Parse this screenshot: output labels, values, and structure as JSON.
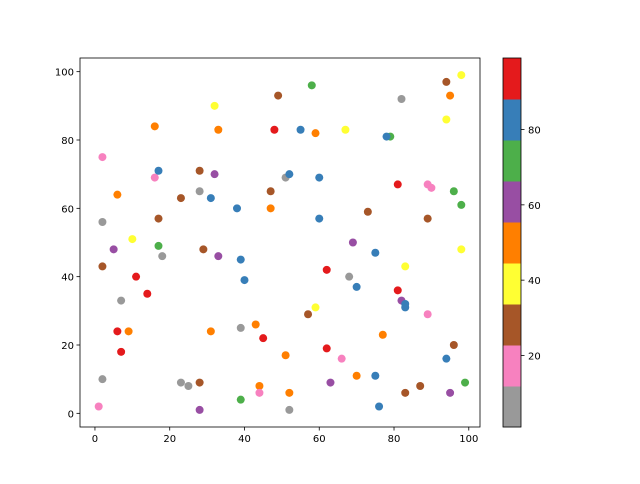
{
  "chart_data": {
    "type": "scatter",
    "title": "",
    "xlabel": "",
    "ylabel": "",
    "xlim": [
      -4,
      103
    ],
    "ylim": [
      -4,
      104
    ],
    "xticks": [
      0,
      20,
      40,
      60,
      80,
      100
    ],
    "yticks": [
      0,
      20,
      40,
      60,
      80,
      100
    ],
    "grid": false,
    "colormap": "Set1_r",
    "colorbar": {
      "range": [
        1,
        99
      ],
      "ticks": [
        20,
        40,
        60,
        80
      ]
    },
    "colormap_colors": [
      "#999999",
      "#f781bf",
      "#a65628",
      "#ffff33",
      "#ff7f00",
      "#984ea3",
      "#4daf4a",
      "#377eb8",
      "#e41a1c"
    ],
    "points": [
      [
        1,
        2,
        15
      ],
      [
        2,
        10,
        5
      ],
      [
        2,
        43,
        27
      ],
      [
        2,
        56,
        5
      ],
      [
        2,
        75,
        15
      ],
      [
        5,
        48,
        60
      ],
      [
        6,
        24,
        93
      ],
      [
        6,
        64,
        49
      ],
      [
        7,
        18,
        93
      ],
      [
        7,
        33,
        5
      ],
      [
        9,
        24,
        49
      ],
      [
        10,
        51,
        38
      ],
      [
        11,
        40,
        93
      ],
      [
        14,
        35,
        93
      ],
      [
        16,
        84,
        49
      ],
      [
        16,
        69,
        15
      ],
      [
        17,
        71,
        82
      ],
      [
        17,
        57,
        27
      ],
      [
        17,
        49,
        71
      ],
      [
        18,
        46,
        5
      ],
      [
        23,
        9,
        5
      ],
      [
        23,
        63,
        27
      ],
      [
        25,
        8,
        5
      ],
      [
        28,
        1,
        60
      ],
      [
        28,
        9,
        27
      ],
      [
        28,
        65,
        5
      ],
      [
        28,
        71,
        27
      ],
      [
        29,
        48,
        27
      ],
      [
        31,
        24,
        49
      ],
      [
        31,
        63,
        82
      ],
      [
        32,
        90,
        38
      ],
      [
        32,
        70,
        60
      ],
      [
        33,
        83,
        49
      ],
      [
        33,
        46,
        60
      ],
      [
        38,
        60,
        82
      ],
      [
        39,
        45,
        82
      ],
      [
        39,
        25,
        5
      ],
      [
        39,
        4,
        71
      ],
      [
        40,
        39,
        82
      ],
      [
        43,
        26,
        49
      ],
      [
        44,
        8,
        49
      ],
      [
        44,
        6,
        15
      ],
      [
        45,
        22,
        93
      ],
      [
        47,
        65,
        27
      ],
      [
        47,
        60,
        49
      ],
      [
        48,
        83,
        93
      ],
      [
        49,
        93,
        27
      ],
      [
        51,
        69,
        5
      ],
      [
        51,
        17,
        49
      ],
      [
        52,
        70,
        82
      ],
      [
        52,
        6,
        49
      ],
      [
        52,
        1,
        5
      ],
      [
        55,
        83,
        82
      ],
      [
        57,
        29,
        27
      ],
      [
        58,
        96,
        71
      ],
      [
        59,
        82,
        49
      ],
      [
        59,
        31,
        38
      ],
      [
        60,
        69,
        82
      ],
      [
        60,
        57,
        82
      ],
      [
        62,
        42,
        93
      ],
      [
        62,
        19,
        93
      ],
      [
        63,
        9,
        60
      ],
      [
        66,
        16,
        15
      ],
      [
        67,
        83,
        38
      ],
      [
        68,
        40,
        5
      ],
      [
        69,
        50,
        60
      ],
      [
        70,
        37,
        82
      ],
      [
        70,
        11,
        49
      ],
      [
        73,
        59,
        27
      ],
      [
        75,
        47,
        82
      ],
      [
        75,
        11,
        82
      ],
      [
        76,
        2,
        82
      ],
      [
        77,
        23,
        49
      ],
      [
        79,
        81,
        71
      ],
      [
        78,
        81,
        82
      ],
      [
        81,
        67,
        93
      ],
      [
        81,
        36,
        93
      ],
      [
        82,
        92,
        5
      ],
      [
        82,
        33,
        60
      ],
      [
        83,
        32,
        82
      ],
      [
        83,
        31,
        82
      ],
      [
        83,
        43,
        38
      ],
      [
        83,
        6,
        27
      ],
      [
        87,
        8,
        27
      ],
      [
        89,
        67,
        15
      ],
      [
        89,
        57,
        27
      ],
      [
        89,
        29,
        15
      ],
      [
        90,
        66,
        15
      ],
      [
        94,
        97,
        27
      ],
      [
        94,
        86,
        38
      ],
      [
        94,
        16,
        82
      ],
      [
        95,
        93,
        49
      ],
      [
        95,
        6,
        60
      ],
      [
        96,
        20,
        27
      ],
      [
        96,
        65,
        71
      ],
      [
        98,
        99,
        38
      ],
      [
        98,
        61,
        71
      ],
      [
        98,
        48,
        38
      ],
      [
        99,
        9,
        71
      ]
    ]
  }
}
